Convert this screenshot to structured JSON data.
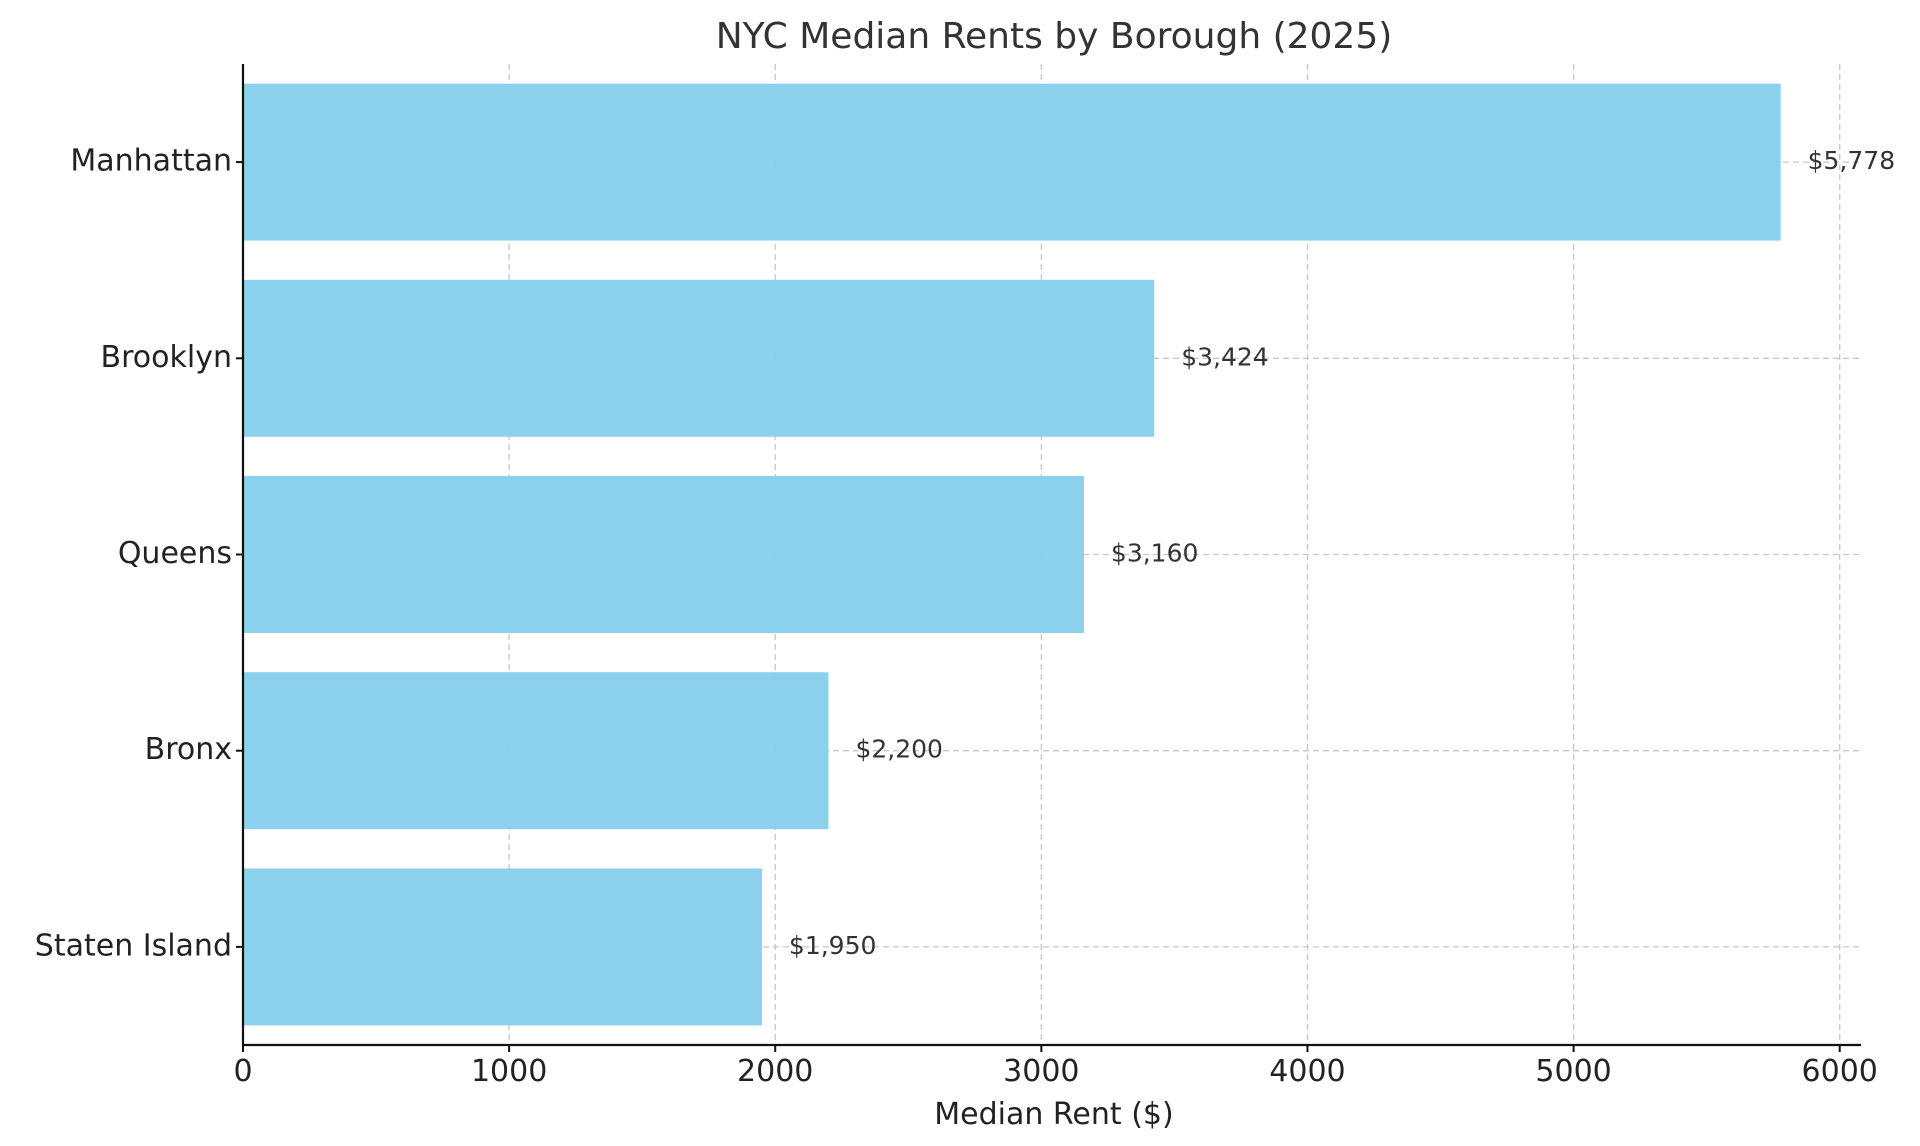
{
  "chart_data": {
    "type": "bar",
    "orientation": "horizontal",
    "title": "NYC Median Rents by Borough (2025)",
    "xlabel": "Median Rent ($)",
    "ylabel": "",
    "categories": [
      "Manhattan",
      "Brooklyn",
      "Queens",
      "Bronx",
      "Staten Island"
    ],
    "values": [
      5778,
      3424,
      3160,
      2200,
      1950
    ],
    "value_labels": [
      "$5,778",
      "$3,424",
      "$3,160",
      "$2,200",
      "$1,950"
    ],
    "xlim": [
      0,
      6080
    ],
    "x_ticks": [
      0,
      1000,
      2000,
      3000,
      4000,
      5000,
      6000
    ],
    "x_tick_labels": [
      "0",
      "1000",
      "2000",
      "3000",
      "4000",
      "5000",
      "6000"
    ],
    "grid": true,
    "bar_color": "#87CEEB"
  }
}
